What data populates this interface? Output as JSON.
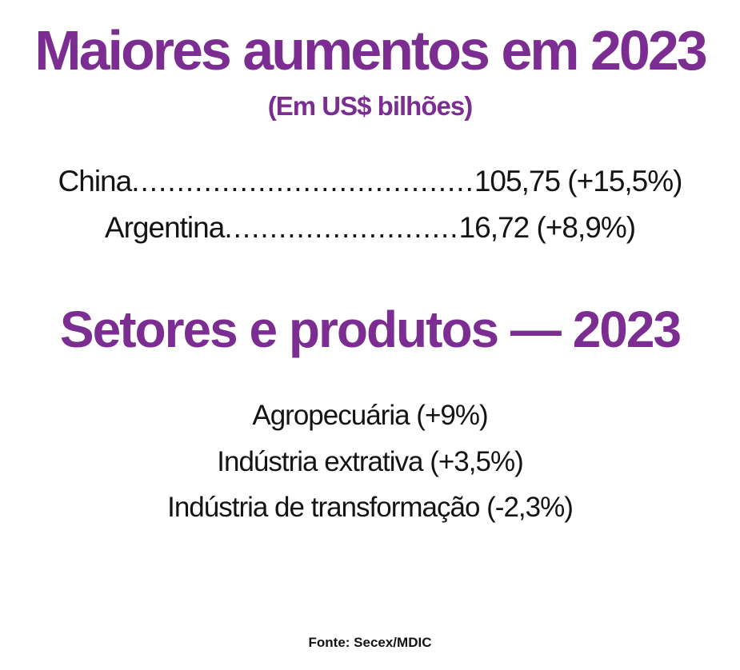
{
  "colors": {
    "accent_purple": "#7B2D91",
    "body_text": "#141414",
    "background": "#FFFFFF"
  },
  "header": {
    "title": "Maiores aumentos em 2023",
    "subtitle": "(Em US$ bilhões)"
  },
  "increases": {
    "rows": [
      {
        "label": "China",
        "dots": "......................................",
        "value": "105,75 (+15,5%)"
      },
      {
        "label": "Argentina",
        "dots": "..........................",
        "value": "16,72 (+8,9%)"
      }
    ]
  },
  "sectors": {
    "title": "Setores e produtos — 2023",
    "items": [
      "Agropecuária (+9%)",
      "Indústria extrativa (+3,5%)",
      "Indústria de transformação (-2,3%)"
    ]
  },
  "footer": {
    "source": "Fonte: Secex/MDIC"
  }
}
